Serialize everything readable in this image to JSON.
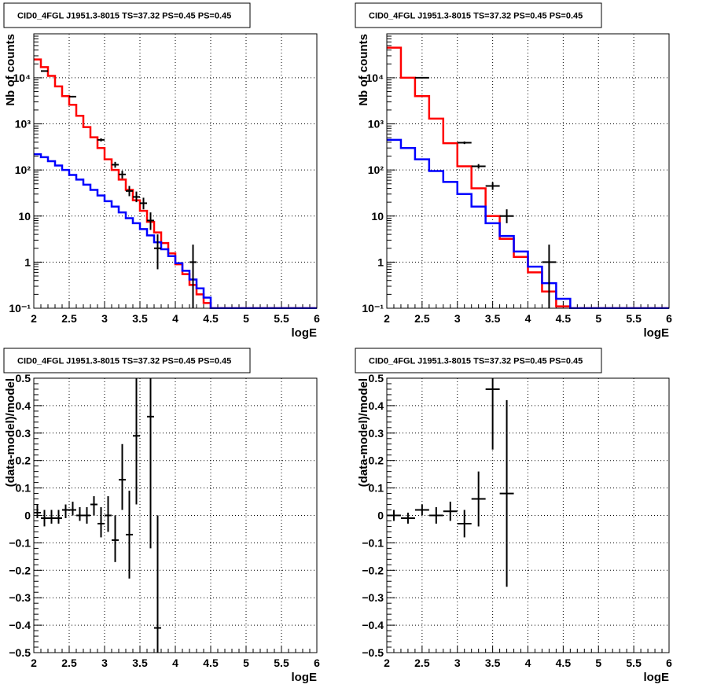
{
  "chart_data": [
    {
      "type": "line",
      "title": "CID0_4FGL J1951.3-8015 TS=37.32 PS=0.45 PS=0.45",
      "xlabel": "logE",
      "ylabel": "Nb of counts",
      "xlim": [
        2,
        6
      ],
      "ylim": [
        0.1,
        90000
      ],
      "y_scale": "log",
      "grid": true,
      "x_ticks": [
        "2",
        "2.5",
        "3",
        "3.5",
        "4",
        "4.5",
        "5",
        "5.5",
        "6"
      ],
      "y_ticks": [
        {
          "value": 0.1,
          "label": "10⁻¹"
        },
        {
          "value": 1,
          "label": "1"
        },
        {
          "value": 10,
          "label": "10"
        },
        {
          "value": 100,
          "label": "10²"
        },
        {
          "value": 1000,
          "label": "10³"
        },
        {
          "value": 10000,
          "label": "10⁴"
        }
      ],
      "series": [
        {
          "color": "#ff0000",
          "kind": "step",
          "edges": [
            2.0,
            2.1,
            2.2,
            2.3,
            2.4,
            2.5,
            2.6,
            2.7,
            2.8,
            2.9,
            3.0,
            3.1,
            3.2,
            3.3,
            3.4,
            3.5,
            3.6,
            3.7,
            3.8,
            3.9,
            4.0,
            4.1,
            4.2,
            4.3,
            4.4,
            4.5,
            6.0
          ],
          "values": [
            25000,
            17000,
            11000,
            6500,
            4000,
            2600,
            1500,
            850,
            510,
            300,
            170,
            100,
            62,
            37,
            22,
            13,
            7.5,
            4.4,
            2.6,
            1.55,
            0.9,
            0.55,
            0.32,
            0.2,
            0.13,
            0.1
          ]
        },
        {
          "color": "#0000ff",
          "kind": "step",
          "edges": [
            2.0,
            2.1,
            2.2,
            2.3,
            2.4,
            2.5,
            2.6,
            2.7,
            2.8,
            2.9,
            3.0,
            3.1,
            3.2,
            3.3,
            3.4,
            3.5,
            3.6,
            3.7,
            3.8,
            3.9,
            4.0,
            4.1,
            4.2,
            4.3,
            4.4,
            4.5,
            6.0
          ],
          "values": [
            220,
            190,
            155,
            125,
            100,
            78,
            62,
            48,
            37,
            28,
            21,
            16,
            12,
            9,
            7,
            5.2,
            3.8,
            2.7,
            1.9,
            1.35,
            0.95,
            0.65,
            0.42,
            0.27,
            0.17,
            0.1
          ]
        },
        {
          "color": "#000000",
          "kind": "points",
          "points": [
            {
              "x": 2.15,
              "xerr": 0.05,
              "y": 14000,
              "lo": 13800,
              "hi": 14200
            },
            {
              "x": 2.55,
              "xerr": 0.05,
              "y": 3900,
              "lo": 3750,
              "hi": 4050
            },
            {
              "x": 2.95,
              "xerr": 0.05,
              "y": 450,
              "lo": 415,
              "hi": 485
            },
            {
              "x": 3.15,
              "xerr": 0.05,
              "y": 130,
              "lo": 112,
              "hi": 150
            },
            {
              "x": 3.25,
              "xerr": 0.05,
              "y": 80,
              "lo": 65,
              "hi": 96
            },
            {
              "x": 3.35,
              "xerr": 0.05,
              "y": 35,
              "lo": 27,
              "hi": 45
            },
            {
              "x": 3.45,
              "xerr": 0.05,
              "y": 26,
              "lo": 20,
              "hi": 34
            },
            {
              "x": 3.55,
              "xerr": 0.05,
              "y": 19,
              "lo": 14,
              "hi": 25
            },
            {
              "x": 3.65,
              "xerr": 0.05,
              "y": 8,
              "lo": 5,
              "hi": 12
            },
            {
              "x": 3.75,
              "xerr": 0.05,
              "y": 2,
              "lo": 0.7,
              "hi": 4
            },
            {
              "x": 4.25,
              "xerr": 0.05,
              "y": 1,
              "lo": 0.1,
              "hi": 2.4
            }
          ]
        }
      ]
    },
    {
      "type": "line",
      "title": "CID0_4FGL J1951.3-8015 TS=37.32 PS=0.45 PS=0.45",
      "xlabel": "logE",
      "ylabel": "Nb of counts",
      "xlim": [
        2,
        6
      ],
      "ylim": [
        0.1,
        90000
      ],
      "y_scale": "log",
      "grid": true,
      "x_ticks": [
        "2",
        "2.5",
        "3",
        "3.5",
        "4",
        "4.5",
        "5",
        "5.5",
        "6"
      ],
      "y_ticks": [
        {
          "value": 0.1,
          "label": "10⁻¹"
        },
        {
          "value": 1,
          "label": "1"
        },
        {
          "value": 10,
          "label": "10"
        },
        {
          "value": 100,
          "label": "10²"
        },
        {
          "value": 1000,
          "label": "10³"
        },
        {
          "value": 10000,
          "label": "10⁴"
        }
      ],
      "series": [
        {
          "color": "#ff0000",
          "kind": "step",
          "edges": [
            2.0,
            2.2,
            2.4,
            2.6,
            2.8,
            3.0,
            3.2,
            3.4,
            3.6,
            3.8,
            4.0,
            4.2,
            4.4,
            4.6,
            6.0
          ],
          "values": [
            45000,
            10000,
            4000,
            1300,
            380,
            120,
            40,
            10,
            3.2,
            1.3,
            0.6,
            0.23,
            0.11,
            0.1
          ]
        },
        {
          "color": "#0000ff",
          "kind": "step",
          "edges": [
            2.0,
            2.2,
            2.4,
            2.6,
            2.8,
            3.0,
            3.2,
            3.4,
            3.6,
            3.8,
            4.0,
            4.2,
            4.4,
            4.6,
            6.0
          ],
          "values": [
            450,
            300,
            170,
            95,
            55,
            30,
            16,
            7,
            3.7,
            1.7,
            0.8,
            0.35,
            0.16,
            0.1
          ]
        },
        {
          "color": "#000000",
          "kind": "points",
          "points": [
            {
              "x": 2.5,
              "xerr": 0.1,
              "y": 10000,
              "lo": 9800,
              "hi": 10200
            },
            {
              "x": 3.1,
              "xerr": 0.1,
              "y": 390,
              "lo": 365,
              "hi": 415
            },
            {
              "x": 3.3,
              "xerr": 0.1,
              "y": 120,
              "lo": 107,
              "hi": 134
            },
            {
              "x": 3.5,
              "xerr": 0.1,
              "y": 45,
              "lo": 37,
              "hi": 54
            },
            {
              "x": 3.7,
              "xerr": 0.1,
              "y": 10,
              "lo": 7,
              "hi": 14
            },
            {
              "x": 4.3,
              "xerr": 0.1,
              "y": 1,
              "lo": 0.1,
              "hi": 2.4
            }
          ]
        }
      ]
    },
    {
      "type": "scatter",
      "title": "CID0_4FGL J1951.3-8015 TS=37.32 PS=0.45 PS=0.45",
      "xlabel": "logE",
      "ylabel": "(data-model)/model",
      "xlim": [
        2,
        6
      ],
      "ylim": [
        -0.5,
        0.5
      ],
      "y_scale": "linear",
      "grid": true,
      "x_ticks": [
        "2",
        "2.5",
        "3",
        "3.5",
        "4",
        "4.5",
        "5",
        "5.5",
        "6"
      ],
      "y_ticks": [
        {
          "value": -0.5,
          "label": "−0.5"
        },
        {
          "value": -0.4,
          "label": "−0.4"
        },
        {
          "value": -0.3,
          "label": "−0.3"
        },
        {
          "value": -0.2,
          "label": "−0.2"
        },
        {
          "value": -0.1,
          "label": "−0.1"
        },
        {
          "value": 0,
          "label": "0"
        },
        {
          "value": 0.1,
          "label": "0.1"
        },
        {
          "value": 0.2,
          "label": "0.2"
        },
        {
          "value": 0.3,
          "label": "0.3"
        },
        {
          "value": 0.4,
          "label": "0.4"
        },
        {
          "value": 0.5,
          "label": "0.5"
        }
      ],
      "series": [
        {
          "color": "#000000",
          "kind": "points",
          "points": [
            {
              "x": 2.05,
              "xerr": 0.05,
              "y": 0.01,
              "lo": -0.01,
              "hi": 0.04
            },
            {
              "x": 2.15,
              "xerr": 0.05,
              "y": -0.01,
              "lo": -0.04,
              "hi": 0.02
            },
            {
              "x": 2.25,
              "xerr": 0.05,
              "y": -0.01,
              "lo": -0.03,
              "hi": 0.02
            },
            {
              "x": 2.35,
              "xerr": 0.05,
              "y": -0.01,
              "lo": -0.03,
              "hi": 0.02
            },
            {
              "x": 2.45,
              "xerr": 0.05,
              "y": 0.02,
              "lo": -0.01,
              "hi": 0.04
            },
            {
              "x": 2.55,
              "xerr": 0.05,
              "y": 0.02,
              "lo": 0.0,
              "hi": 0.05
            },
            {
              "x": 2.65,
              "xerr": 0.05,
              "y": 0.0,
              "lo": -0.02,
              "hi": 0.03
            },
            {
              "x": 2.75,
              "xerr": 0.05,
              "y": 0.0,
              "lo": -0.03,
              "hi": 0.03
            },
            {
              "x": 2.85,
              "xerr": 0.05,
              "y": 0.04,
              "lo": 0.0,
              "hi": 0.07
            },
            {
              "x": 2.95,
              "xerr": 0.05,
              "y": -0.03,
              "lo": -0.08,
              "hi": 0.03
            },
            {
              "x": 3.05,
              "xerr": 0.05,
              "y": 0.0,
              "lo": -0.06,
              "hi": 0.07
            },
            {
              "x": 3.15,
              "xerr": 0.05,
              "y": -0.09,
              "lo": -0.17,
              "hi": 0.0
            },
            {
              "x": 3.25,
              "xerr": 0.05,
              "y": 0.13,
              "lo": 0.02,
              "hi": 0.26
            },
            {
              "x": 3.35,
              "xerr": 0.05,
              "y": -0.07,
              "lo": -0.23,
              "hi": 0.09
            },
            {
              "x": 3.45,
              "xerr": 0.05,
              "y": 0.29,
              "lo": 0.04,
              "hi": 0.5
            },
            {
              "x": 3.65,
              "xerr": 0.05,
              "y": 0.36,
              "lo": -0.12,
              "hi": 0.5
            },
            {
              "x": 3.75,
              "xerr": 0.05,
              "y": -0.41,
              "lo": -0.5,
              "hi": 0.0
            }
          ]
        }
      ]
    },
    {
      "type": "scatter",
      "title": "CID0_4FGL J1951.3-8015 TS=37.32 PS=0.45 PS=0.45",
      "xlabel": "logE",
      "ylabel": "(data-model)/model",
      "xlim": [
        2,
        6
      ],
      "ylim": [
        -0.5,
        0.5
      ],
      "y_scale": "linear",
      "grid": true,
      "x_ticks": [
        "2",
        "2.5",
        "3",
        "3.5",
        "4",
        "4.5",
        "5",
        "5.5",
        "6"
      ],
      "y_ticks": [
        {
          "value": -0.5,
          "label": "−0.5"
        },
        {
          "value": -0.4,
          "label": "−0.4"
        },
        {
          "value": -0.3,
          "label": "−0.3"
        },
        {
          "value": -0.2,
          "label": "−0.2"
        },
        {
          "value": -0.1,
          "label": "−0.1"
        },
        {
          "value": 0,
          "label": "0"
        },
        {
          "value": 0.1,
          "label": "0.1"
        },
        {
          "value": 0.2,
          "label": "0.2"
        },
        {
          "value": 0.3,
          "label": "0.3"
        },
        {
          "value": 0.4,
          "label": "0.4"
        },
        {
          "value": 0.5,
          "label": "0.5"
        }
      ],
      "series": [
        {
          "color": "#000000",
          "kind": "points",
          "points": [
            {
              "x": 2.1,
              "xerr": 0.1,
              "y": 0.0,
              "lo": -0.02,
              "hi": 0.02
            },
            {
              "x": 2.3,
              "xerr": 0.1,
              "y": -0.01,
              "lo": -0.03,
              "hi": 0.01
            },
            {
              "x": 2.5,
              "xerr": 0.1,
              "y": 0.02,
              "lo": 0.0,
              "hi": 0.04
            },
            {
              "x": 2.7,
              "xerr": 0.1,
              "y": 0.0,
              "lo": -0.03,
              "hi": 0.03
            },
            {
              "x": 2.9,
              "xerr": 0.1,
              "y": 0.015,
              "lo": -0.02,
              "hi": 0.05
            },
            {
              "x": 3.1,
              "xerr": 0.1,
              "y": -0.03,
              "lo": -0.08,
              "hi": 0.02
            },
            {
              "x": 3.3,
              "xerr": 0.1,
              "y": 0.06,
              "lo": -0.04,
              "hi": 0.16
            },
            {
              "x": 3.5,
              "xerr": 0.1,
              "y": 0.46,
              "lo": 0.24,
              "hi": 0.5
            },
            {
              "x": 3.7,
              "xerr": 0.1,
              "y": 0.08,
              "lo": -0.26,
              "hi": 0.42
            }
          ]
        }
      ]
    }
  ]
}
